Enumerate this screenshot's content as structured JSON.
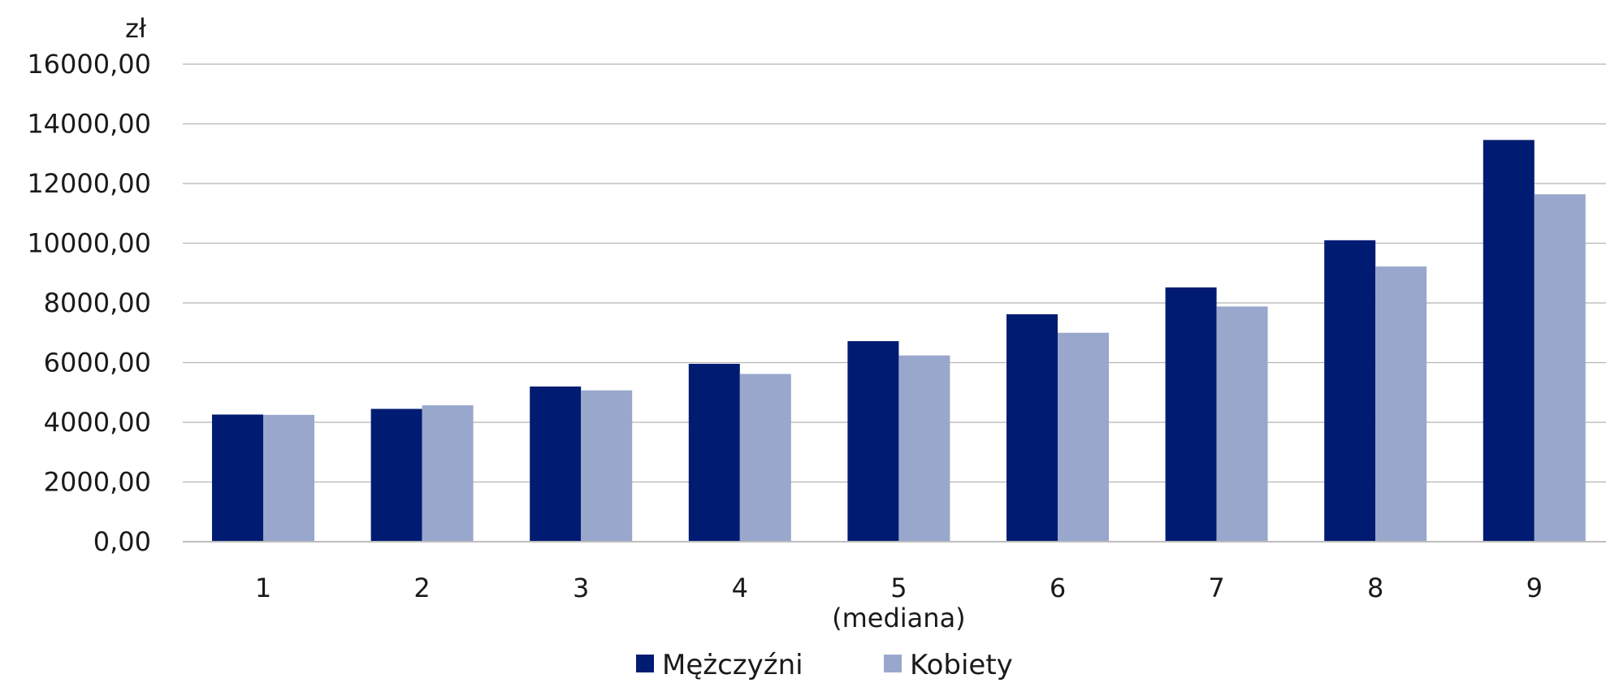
{
  "chart_data": {
    "type": "bar",
    "unit_label": "zł",
    "categories": [
      "1",
      "2",
      "3",
      "4",
      "5",
      "6",
      "7",
      "8",
      "9"
    ],
    "category_sublabels": [
      "",
      "",
      "",
      "",
      "(mediana)",
      "",
      "",
      "",
      ""
    ],
    "series": [
      {
        "name": "Mężczyźni",
        "color": "#001c72",
        "values": [
          4260,
          4450,
          5200,
          5960,
          6720,
          7620,
          8520,
          10100,
          13460
        ]
      },
      {
        "name": "Kobiety",
        "color": "#99a7cc",
        "values": [
          4250,
          4570,
          5070,
          5620,
          6240,
          7000,
          7880,
          9220,
          11640
        ]
      }
    ],
    "ylim": [
      0,
      16000
    ],
    "yticks": [
      0,
      2000,
      4000,
      6000,
      8000,
      10000,
      12000,
      14000,
      16000
    ],
    "ytick_labels": [
      "0,00",
      "2000,00",
      "4000,00",
      "6000,00",
      "8000,00",
      "10000,00",
      "12000,00",
      "14000,00",
      "16000,00"
    ],
    "grid": true,
    "legend_position": "bottom-center"
  }
}
